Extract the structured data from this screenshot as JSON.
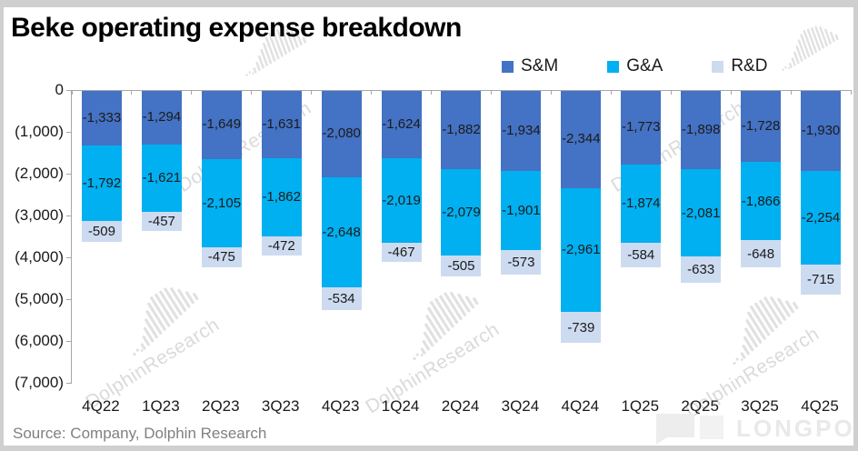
{
  "title": "Beke operating expense breakdown",
  "source": "Source: Company, Dolphin Research",
  "watermark": {
    "text": "DolphinResearch",
    "brand": "LONGPORT"
  },
  "legend": {
    "position": "top-right",
    "items": [
      {
        "label": "S&M",
        "color": "#4472C4"
      },
      {
        "label": "G&A",
        "color": "#00B0F0"
      },
      {
        "label": "R&D",
        "color": "#CDDBF1"
      }
    ]
  },
  "chart_data": {
    "type": "bar",
    "stacked": true,
    "orientation": "vertical",
    "title": "Beke operating expense breakdown",
    "xlabel": "",
    "ylabel": "",
    "grid": false,
    "legend_position": "top-right",
    "data_labels": true,
    "ylim": [
      -7000,
      0
    ],
    "y_ticks": [
      "0",
      "(1,000)",
      "(2,000)",
      "(3,000)",
      "(4,000)",
      "(5,000)",
      "(6,000)",
      "(7,000)"
    ],
    "categories": [
      "4Q22",
      "1Q23",
      "2Q23",
      "3Q23",
      "4Q23",
      "1Q24",
      "2Q24",
      "3Q24",
      "4Q24",
      "1Q25",
      "2Q25",
      "3Q25",
      "4Q25"
    ],
    "series": [
      {
        "name": "S&M",
        "color": "#4472C4",
        "values": [
          -1333,
          -1294,
          -1649,
          -1631,
          -2080,
          -1624,
          -1882,
          -1934,
          -2344,
          -1773,
          -1898,
          -1728,
          -1930
        ]
      },
      {
        "name": "G&A",
        "color": "#00B0F0",
        "values": [
          -1792,
          -1621,
          -2105,
          -1862,
          -2648,
          -2019,
          -2079,
          -1901,
          -2961,
          -1874,
          -2081,
          -1866,
          -2254
        ]
      },
      {
        "name": "R&D",
        "color": "#CDDBF1",
        "values": [
          -509,
          -457,
          -475,
          -472,
          -534,
          -467,
          -505,
          -573,
          -739,
          -584,
          -633,
          -648,
          -715
        ]
      }
    ]
  }
}
